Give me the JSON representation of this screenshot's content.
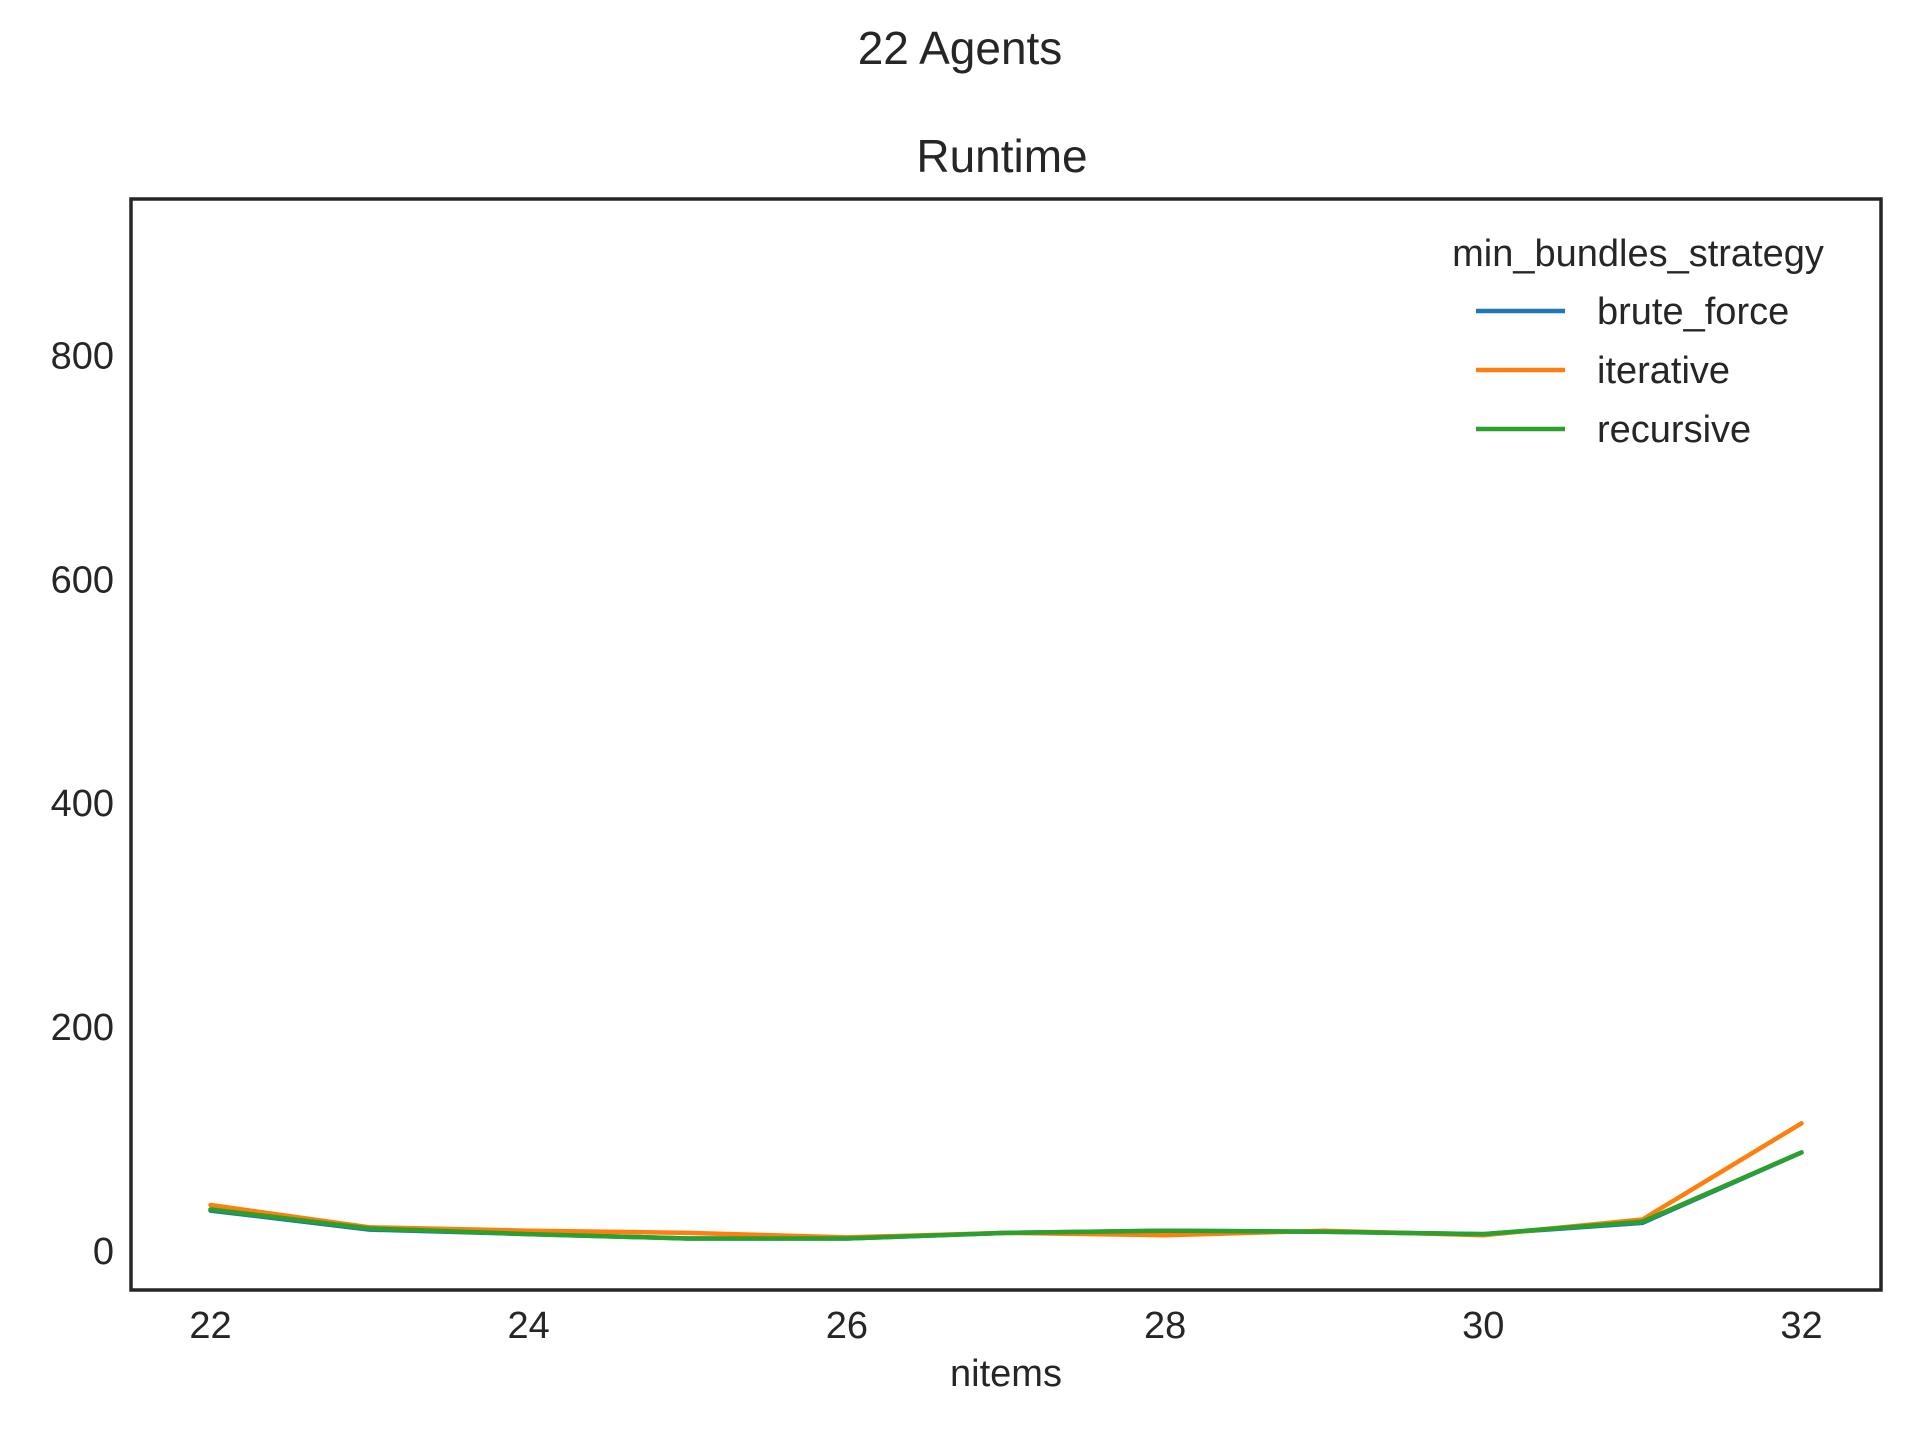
{
  "figure": {
    "suptitle": "22 Agents"
  },
  "chart_data": {
    "type": "line",
    "title": "Runtime",
    "xlabel": "nitems",
    "ylabel": "",
    "xlim": [
      21.5,
      32.5
    ],
    "ylim": [
      -35,
      940
    ],
    "xticks": [
      22,
      24,
      26,
      28,
      30,
      32
    ],
    "xtick_labels": [
      "22",
      "24",
      "26",
      "28",
      "30",
      "32"
    ],
    "yticks": [
      0,
      200,
      400,
      600,
      800
    ],
    "ytick_labels": [
      "0",
      "200",
      "400",
      "600",
      "800"
    ],
    "grid": false,
    "legend": {
      "title": "min_bundles_strategy",
      "placement": "top-right"
    },
    "x": [
      22,
      23,
      24,
      25,
      26,
      27,
      28,
      29,
      30,
      31,
      32
    ],
    "series": [
      {
        "name": "brute_force",
        "color": "#1f77b4",
        "values": [
          36,
          19,
          15,
          11,
          11,
          16,
          18,
          17,
          15,
          25,
          88
        ]
      },
      {
        "name": "iterative",
        "color": "#ff7f0e",
        "values": [
          41,
          21,
          18,
          16,
          12,
          16,
          14,
          18,
          14,
          28,
          114
        ]
      },
      {
        "name": "recursive",
        "color": "#2ca02c",
        "values": [
          37,
          20,
          15,
          11,
          11,
          16,
          18,
          17,
          15,
          26,
          88
        ]
      }
    ]
  }
}
